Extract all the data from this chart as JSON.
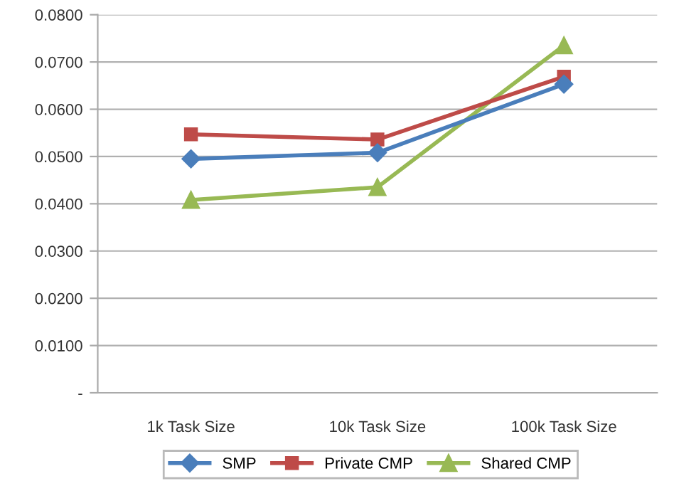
{
  "chart_data": {
    "type": "line",
    "categories": [
      "1k Task Size",
      "10k Task Size",
      "100k Task Size"
    ],
    "series": [
      {
        "name": "SMP",
        "color": "#4a7ebb",
        "marker": "diamond",
        "values": [
          0.0495,
          0.0508,
          0.0653
        ]
      },
      {
        "name": "Private CMP",
        "color": "#be4b48",
        "marker": "square",
        "values": [
          0.0547,
          0.0536,
          0.0669
        ]
      },
      {
        "name": "Shared CMP",
        "color": "#98b954",
        "marker": "triangle",
        "values": [
          0.0408,
          0.0435,
          0.0735
        ]
      }
    ],
    "ylim": [
      0,
      0.08
    ],
    "yticks": [
      {
        "value": 0,
        "label": "-"
      },
      {
        "value": 0.01,
        "label": "0.0100"
      },
      {
        "value": 0.02,
        "label": "0.0200"
      },
      {
        "value": 0.03,
        "label": "0.0300"
      },
      {
        "value": 0.04,
        "label": "0.0400"
      },
      {
        "value": 0.05,
        "label": "0.0500"
      },
      {
        "value": 0.06,
        "label": "0.0600"
      },
      {
        "value": 0.07,
        "label": "0.0700"
      },
      {
        "value": 0.08,
        "label": "0.0800"
      }
    ],
    "grid": "y",
    "legend": "bottom",
    "line_style": "solid"
  }
}
